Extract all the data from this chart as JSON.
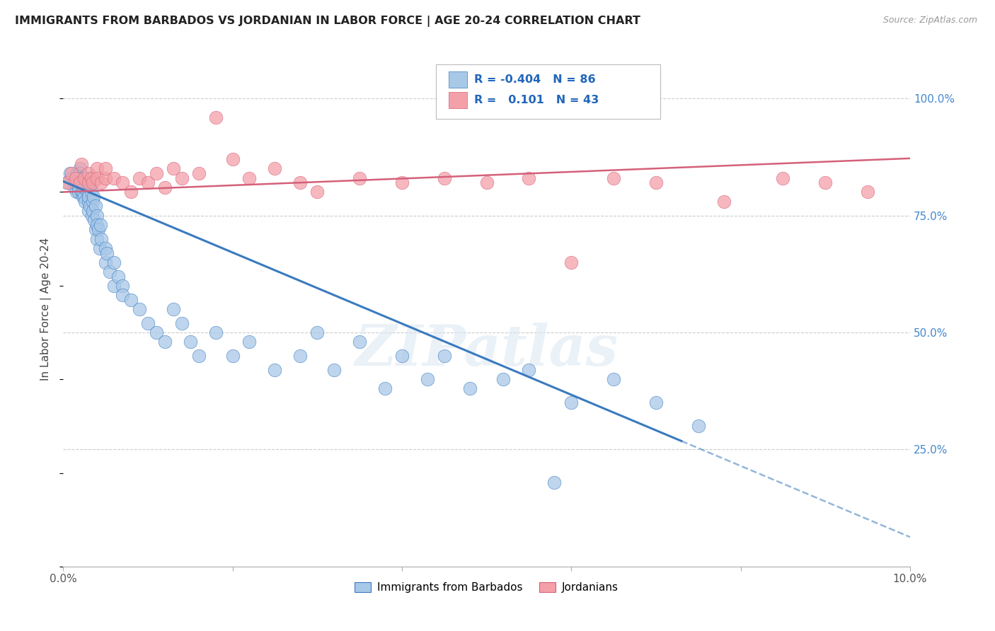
{
  "title": "IMMIGRANTS FROM BARBADOS VS JORDANIAN IN LABOR FORCE | AGE 20-24 CORRELATION CHART",
  "source": "Source: ZipAtlas.com",
  "ylabel": "In Labor Force | Age 20-24",
  "ytick_labels": [
    "100.0%",
    "75.0%",
    "50.0%",
    "25.0%"
  ],
  "ytick_values": [
    1.0,
    0.75,
    0.5,
    0.25
  ],
  "xlim": [
    0.0,
    0.1
  ],
  "ylim": [
    0.0,
    1.1
  ],
  "legend_r_blue": "-0.404",
  "legend_n_blue": "86",
  "legend_r_pink": "0.101",
  "legend_n_pink": "43",
  "blue_color": "#a8c8e8",
  "pink_color": "#f4a0a8",
  "line_blue": "#3a7abf",
  "line_pink": "#d4607a",
  "watermark": "ZIPatlas",
  "legend_label_blue": "Immigrants from Barbados",
  "legend_label_pink": "Jordanians",
  "blue_intercept": 0.823,
  "blue_slope": -7.6,
  "pink_intercept": 0.8,
  "pink_slope": 0.72,
  "blue_scatter_x": [
    0.0005,
    0.0008,
    0.001,
    0.0012,
    0.0013,
    0.0015,
    0.0015,
    0.0016,
    0.0017,
    0.0017,
    0.0018,
    0.0018,
    0.002,
    0.002,
    0.002,
    0.002,
    0.0022,
    0.0023,
    0.0023,
    0.0023,
    0.0025,
    0.0025,
    0.0025,
    0.0026,
    0.0027,
    0.0028,
    0.003,
    0.003,
    0.003,
    0.003,
    0.003,
    0.003,
    0.0032,
    0.0033,
    0.0034,
    0.0035,
    0.0035,
    0.0036,
    0.0037,
    0.0038,
    0.0038,
    0.004,
    0.004,
    0.004,
    0.0042,
    0.0043,
    0.0044,
    0.0045,
    0.005,
    0.005,
    0.0052,
    0.0055,
    0.006,
    0.006,
    0.0065,
    0.007,
    0.007,
    0.008,
    0.009,
    0.01,
    0.011,
    0.012,
    0.013,
    0.014,
    0.015,
    0.016,
    0.018,
    0.02,
    0.022,
    0.025,
    0.028,
    0.03,
    0.032,
    0.035,
    0.038,
    0.04,
    0.043,
    0.045,
    0.048,
    0.052,
    0.055,
    0.06,
    0.065,
    0.07,
    0.075,
    0.058
  ],
  "blue_scatter_y": [
    0.82,
    0.84,
    0.83,
    0.82,
    0.81,
    0.83,
    0.82,
    0.8,
    0.84,
    0.82,
    0.81,
    0.8,
    0.85,
    0.84,
    0.82,
    0.83,
    0.8,
    0.79,
    0.82,
    0.8,
    0.83,
    0.79,
    0.81,
    0.78,
    0.82,
    0.8,
    0.83,
    0.81,
    0.78,
    0.8,
    0.76,
    0.79,
    0.77,
    0.8,
    0.75,
    0.78,
    0.76,
    0.79,
    0.74,
    0.77,
    0.72,
    0.75,
    0.73,
    0.7,
    0.72,
    0.68,
    0.73,
    0.7,
    0.68,
    0.65,
    0.67,
    0.63,
    0.65,
    0.6,
    0.62,
    0.6,
    0.58,
    0.57,
    0.55,
    0.52,
    0.5,
    0.48,
    0.55,
    0.52,
    0.48,
    0.45,
    0.5,
    0.45,
    0.48,
    0.42,
    0.45,
    0.5,
    0.42,
    0.48,
    0.38,
    0.45,
    0.4,
    0.45,
    0.38,
    0.4,
    0.42,
    0.35,
    0.4,
    0.35,
    0.3,
    0.18
  ],
  "pink_scatter_x": [
    0.0005,
    0.001,
    0.0015,
    0.002,
    0.0022,
    0.0025,
    0.003,
    0.003,
    0.0033,
    0.0035,
    0.004,
    0.004,
    0.0045,
    0.005,
    0.005,
    0.006,
    0.007,
    0.008,
    0.009,
    0.01,
    0.011,
    0.012,
    0.013,
    0.014,
    0.016,
    0.018,
    0.02,
    0.022,
    0.025,
    0.028,
    0.03,
    0.035,
    0.04,
    0.045,
    0.05,
    0.055,
    0.06,
    0.065,
    0.07,
    0.078,
    0.085,
    0.09,
    0.095
  ],
  "pink_scatter_y": [
    0.82,
    0.84,
    0.83,
    0.82,
    0.86,
    0.83,
    0.82,
    0.84,
    0.83,
    0.82,
    0.85,
    0.83,
    0.82,
    0.83,
    0.85,
    0.83,
    0.82,
    0.8,
    0.83,
    0.82,
    0.84,
    0.81,
    0.85,
    0.83,
    0.84,
    0.96,
    0.87,
    0.83,
    0.85,
    0.82,
    0.8,
    0.83,
    0.82,
    0.83,
    0.82,
    0.83,
    0.65,
    0.83,
    0.82,
    0.78,
    0.83,
    0.82,
    0.8
  ]
}
